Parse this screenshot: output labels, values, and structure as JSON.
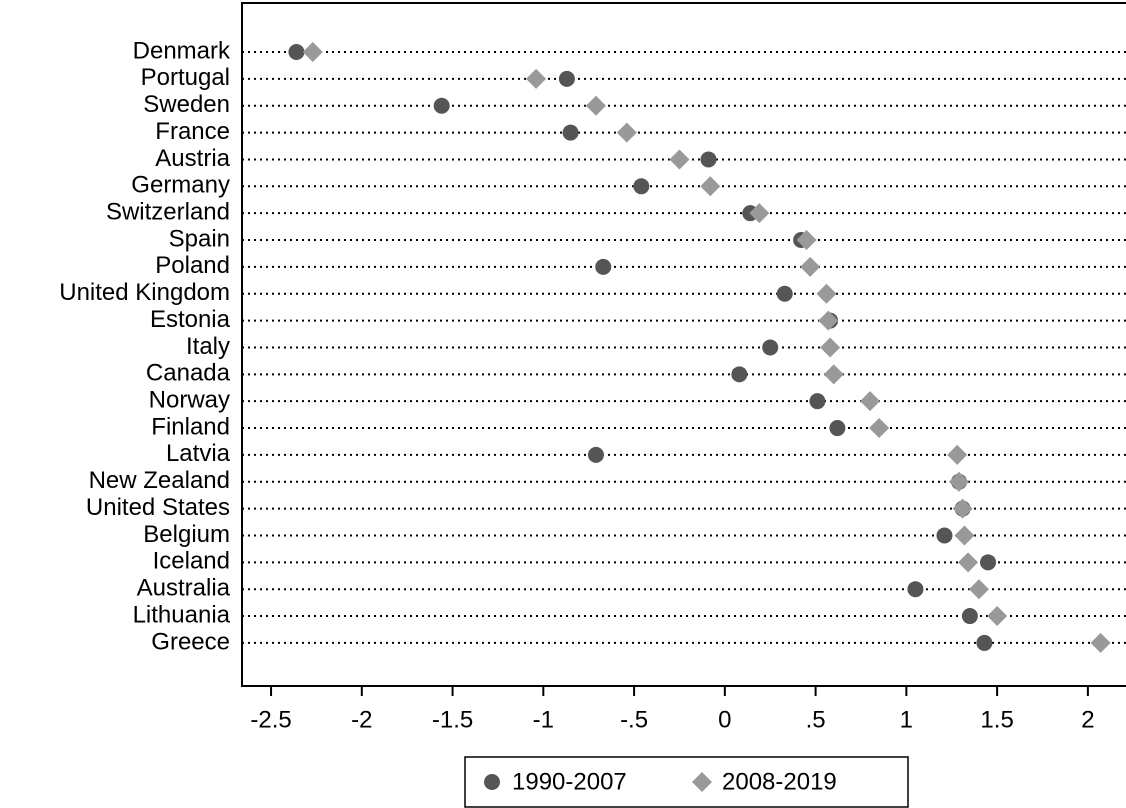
{
  "chart_data": {
    "type": "dot",
    "categories": [
      "Denmark",
      "Portugal",
      "Sweden",
      "France",
      "Austria",
      "Germany",
      "Switzerland",
      "Spain",
      "Poland",
      "United Kingdom",
      "Estonia",
      "Italy",
      "Canada",
      "Norway",
      "Finland",
      "Latvia",
      "New Zealand",
      "United States",
      "Belgium",
      "Iceland",
      "Australia",
      "Lithuania",
      "Greece"
    ],
    "series": [
      {
        "name": "1990-2007",
        "color": "#555555",
        "marker": "circle",
        "values": [
          -2.36,
          -0.87,
          -1.56,
          -0.85,
          -0.09,
          -0.46,
          0.14,
          0.42,
          -0.67,
          0.33,
          0.58,
          0.25,
          0.08,
          0.51,
          0.62,
          -0.71,
          1.29,
          1.31,
          1.21,
          1.45,
          1.05,
          1.35,
          1.43
        ]
      },
      {
        "name": "2008-2019",
        "color": "#999999",
        "marker": "diamond",
        "values": [
          -2.27,
          -1.04,
          -0.71,
          -0.54,
          -0.25,
          -0.08,
          0.19,
          0.45,
          0.47,
          0.56,
          0.57,
          0.58,
          0.6,
          0.8,
          0.85,
          1.28,
          1.29,
          1.31,
          1.32,
          1.34,
          1.4,
          1.5,
          2.07
        ]
      }
    ],
    "xlim": [
      -2.66,
      2.21
    ],
    "xticks": [
      {
        "value": -2.5,
        "label": "-2.5"
      },
      -2,
      {
        "value": -1.5,
        "label": "-1.5"
      },
      -1,
      {
        "value": -0.5,
        "label": "-.5"
      },
      0,
      {
        "value": 0.5,
        "label": ".5"
      },
      1,
      {
        "value": 1.5,
        "label": "1.5"
      },
      2
    ],
    "grid": true,
    "legend": "bottom"
  }
}
